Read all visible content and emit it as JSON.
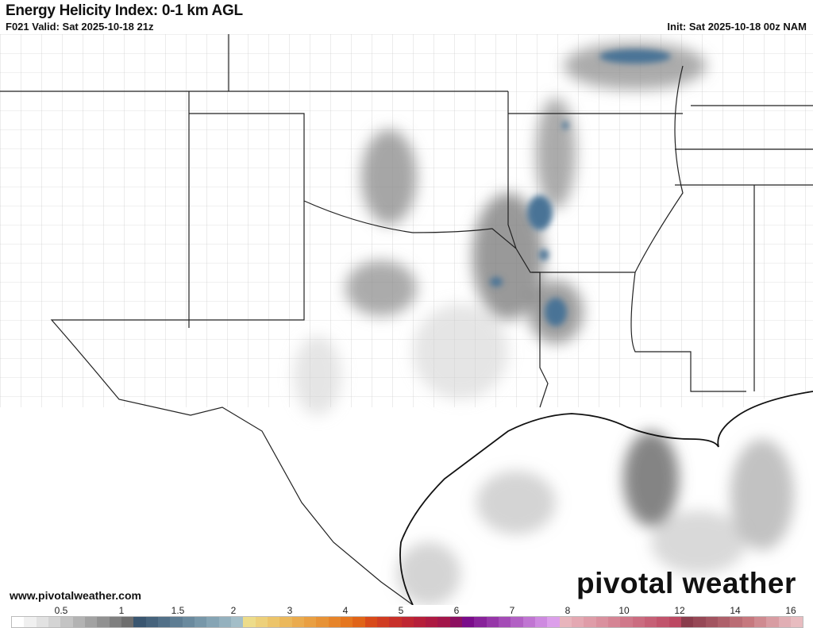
{
  "header": {
    "title": "Energy Helicity Index: 0-1 km AGL",
    "valid": "F021 Valid: Sat 2025-10-18 21z",
    "init": "Init: Sat 2025-10-18 00z NAM"
  },
  "footer": {
    "website": "www.pivotalweather.com",
    "brand": "pivotal weather"
  },
  "colorbar": {
    "ticks": [
      "0.5",
      "1",
      "1.5",
      "2",
      "3",
      "4",
      "5",
      "6",
      "7",
      "8",
      "10",
      "12",
      "14",
      "16"
    ],
    "colors": [
      "#ffffff",
      "#f0f0f0",
      "#e2e2e2",
      "#d4d4d4",
      "#c4c4c4",
      "#b3b3b3",
      "#a2a2a2",
      "#919191",
      "#7f7f7f",
      "#6e6e6e",
      "#3a5670",
      "#46637c",
      "#527088",
      "#5e7d93",
      "#6a8a9e",
      "#7797a9",
      "#85a4b4",
      "#94b1be",
      "#a3bec8",
      "#eddc8a",
      "#edd07a",
      "#ecc46a",
      "#ebb85b",
      "#eaab4e",
      "#e99f42",
      "#e79236",
      "#e6842a",
      "#e5761f",
      "#e06418",
      "#d84a1a",
      "#d03c22",
      "#c8302a",
      "#bf2632",
      "#b61f3a",
      "#ad1a42",
      "#a3164a",
      "#8c1060",
      "#7a0c8a",
      "#88229a",
      "#9636a8",
      "#a44bb6",
      "#b260c4",
      "#c075d2",
      "#ce8ae0",
      "#dc9fea",
      "#e8b4bc",
      "#e4a8b2",
      "#df9ca8",
      "#da909e",
      "#d58494",
      "#d0788a",
      "#cb6c80",
      "#c66076",
      "#c1546c",
      "#bc4862",
      "#8a3c4c",
      "#964856",
      "#a25460",
      "#ae606a",
      "#ba6c74",
      "#c6787e",
      "#cf8a90",
      "#d89ca2",
      "#e1aeb4",
      "#e8bcc0"
    ],
    "range": [
      0,
      16
    ]
  },
  "legend_colors": {
    "shading": "#808080",
    "high_values": "#4a7396",
    "borders": "#222222"
  }
}
